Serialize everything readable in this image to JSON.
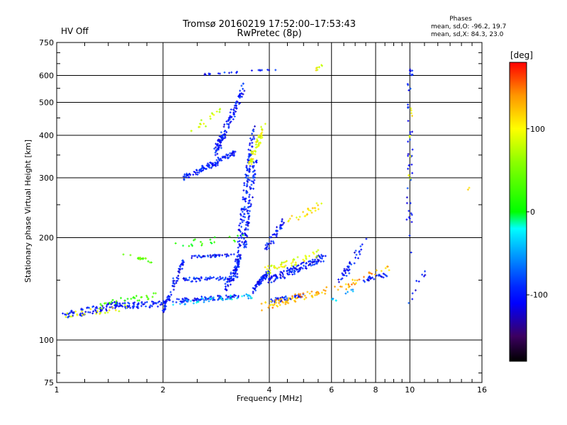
{
  "status_label": "HV Off",
  "status_color": "#e01010",
  "chart_data": {
    "type": "scatter",
    "title": "Tromsø 20160219 17:52:00–17:53:43",
    "subtitle": "RwPretec (8p)",
    "xlabel": "Frequency [MHz]",
    "ylabel": "Stationary phase Virtual Height [km]",
    "x_scale": "log",
    "y_scale": "log",
    "xlim": [
      1,
      16
    ],
    "ylim": [
      75,
      750
    ],
    "x_ticks": [
      1,
      2,
      4,
      6,
      8,
      10,
      16
    ],
    "x_tick_labels": [
      "1",
      "2",
      "4",
      "6",
      "8",
      "10",
      "16"
    ],
    "x_minor_ticks": [
      1.2,
      1.4,
      1.6,
      1.8,
      2.5,
      3,
      3.5,
      4.5,
      5,
      5.5,
      6.5,
      7,
      7.5,
      8.5,
      9,
      9.5,
      11,
      12,
      13,
      14,
      15
    ],
    "y_ticks": [
      75,
      100,
      200,
      300,
      400,
      500,
      600,
      750
    ],
    "y_tick_labels": [
      "75",
      "100",
      "200",
      "300",
      "400",
      "500",
      "600",
      "750"
    ],
    "grid": true,
    "legend": {
      "heading": "Phases",
      "lines": [
        "mean, sd,O: -96.2, 19.7",
        "mean, sd,X:  84.3, 23.0"
      ],
      "placement": "top-right"
    },
    "colorbar": {
      "label": "[deg]",
      "range": [
        -180,
        180
      ],
      "ticks": [
        100,
        0,
        -100
      ],
      "tick_labels": [
        "100",
        "0",
        "-100"
      ],
      "colors": [
        "#000000",
        "#3c0060",
        "#0000ff",
        "#00a0ff",
        "#00ffff",
        "#00ff00",
        "#ffff00",
        "#ffa000",
        "#ff0000"
      ]
    },
    "series": [
      {
        "segments": [
          {
            "x": [
              1.05,
              1.55
            ],
            "y": [
              118,
              128
            ],
            "n": 90,
            "spread": 0.05,
            "phase": -100
          },
          {
            "x": [
              1.55,
              2.05
            ],
            "y": [
              126,
              128
            ],
            "n": 70,
            "spread": 0.04,
            "phase": -100
          },
          {
            "x": [
              2.1,
              3.3
            ],
            "y": [
              130,
              135
            ],
            "n": 80,
            "spread": 0.03,
            "phase": -100
          },
          {
            "x": [
              2.1,
              3.2
            ],
            "y": [
              150,
              152
            ],
            "n": 60,
            "spread": 0.03,
            "phase": -100
          },
          {
            "x": [
              2.0,
              2.3
            ],
            "y": [
              120,
              175
            ],
            "n": 60,
            "spread": 0.03,
            "phase": -100
          },
          {
            "x": [
              2.3,
              3.2
            ],
            "y": [
              300,
              355
            ],
            "n": 110,
            "spread": 0.04,
            "phase": -100
          },
          {
            "x": [
              2.8,
              3.4
            ],
            "y": [
              350,
              560
            ],
            "n": 120,
            "spread": 0.05,
            "phase": -100
          },
          {
            "x": [
              3.2,
              3.6
            ],
            "y": [
              150,
              420
            ],
            "n": 140,
            "spread": 0.05,
            "phase": -100
          },
          {
            "x": [
              3.4,
              3.65
            ],
            "y": [
              185,
              340
            ],
            "n": 80,
            "spread": 0.04,
            "phase": -100
          },
          {
            "x": [
              3.0,
              3.3
            ],
            "y": [
              140,
              175
            ],
            "n": 50,
            "spread": 0.04,
            "phase": -100
          },
          {
            "x": [
              2.4,
              3.2
            ],
            "y": [
              175,
              178
            ],
            "n": 40,
            "spread": 0.02,
            "phase": -100
          },
          {
            "x": [
              3.6,
              4.0
            ],
            "y": [
              140,
              160
            ],
            "n": 60,
            "spread": 0.04,
            "phase": -100
          },
          {
            "x": [
              4.0,
              5.7
            ],
            "y": [
              150,
              175
            ],
            "n": 120,
            "spread": 0.05,
            "phase": -100
          },
          {
            "x": [
              3.9,
              4.4
            ],
            "y": [
              185,
              225
            ],
            "n": 40,
            "spread": 0.05,
            "phase": -100
          },
          {
            "x": [
              4.0,
              5.0
            ],
            "y": [
              130,
              135
            ],
            "n": 40,
            "spread": 0.03,
            "phase": -100
          },
          {
            "x": [
              6.2,
              7.5
            ],
            "y": [
              145,
              195
            ],
            "n": 40,
            "spread": 0.06,
            "phase": -100
          },
          {
            "x": [
              7.3,
              8.6
            ],
            "y": [
              150,
              155
            ],
            "n": 30,
            "spread": 0.03,
            "phase": -100
          },
          {
            "x": [
              9.95,
              10.05
            ],
            "y": [
              180,
              640
            ],
            "n": 45,
            "spread": 0.06,
            "phase": -100
          },
          {
            "x": [
              2.6,
              4.3
            ],
            "y": [
              605,
              625
            ],
            "n": 22,
            "spread": 0.01,
            "phase": -100
          },
          {
            "x": [
              1.3,
              1.9
            ],
            "y": [
              128,
              135
            ],
            "n": 30,
            "spread": 0.04,
            "phase": 30
          },
          {
            "x": [
              1.55,
              1.85
            ],
            "y": [
              180,
              170
            ],
            "n": 18,
            "spread": 0.02,
            "phase": 40
          },
          {
            "x": [
              1.05,
              1.6
            ],
            "y": [
              118,
              125
            ],
            "n": 25,
            "spread": 0.04,
            "phase": 90
          },
          {
            "x": [
              2.1,
              3.6
            ],
            "y": [
              128,
              135
            ],
            "n": 40,
            "spread": 0.03,
            "phase": -40
          },
          {
            "x": [
              2.1,
              3.4
            ],
            "y": [
              190,
              200
            ],
            "n": 20,
            "spread": 0.05,
            "phase": 20
          },
          {
            "x": [
              3.5,
              3.9
            ],
            "y": [
              330,
              430
            ],
            "n": 55,
            "spread": 0.05,
            "phase": 95
          },
          {
            "x": [
              2.4,
              2.9
            ],
            "y": [
              410,
              470
            ],
            "n": 18,
            "spread": 0.05,
            "phase": 80
          },
          {
            "x": [
              3.8,
              5.8
            ],
            "y": [
              125,
              140
            ],
            "n": 70,
            "spread": 0.05,
            "phase": 130
          },
          {
            "x": [
              3.9,
              5.6
            ],
            "y": [
              160,
              180
            ],
            "n": 50,
            "spread": 0.05,
            "phase": 90
          },
          {
            "x": [
              4.4,
              5.6
            ],
            "y": [
              220,
              250
            ],
            "n": 25,
            "spread": 0.05,
            "phase": 110
          },
          {
            "x": [
              5.3,
              5.7
            ],
            "y": [
              610,
              650
            ],
            "n": 8,
            "spread": 0.02,
            "phase": 100
          },
          {
            "x": [
              6.2,
              8.8
            ],
            "y": [
              140,
              165
            ],
            "n": 30,
            "spread": 0.05,
            "phase": 130
          },
          {
            "x": [
              9.9,
              10.1
            ],
            "y": [
              260,
              520
            ],
            "n": 10,
            "spread": 0.04,
            "phase": 100
          },
          {
            "x": [
              10.0,
              11.2
            ],
            "y": [
              130,
              165
            ],
            "n": 10,
            "spread": 0.05,
            "phase": -100
          },
          {
            "x": [
              6.0,
              7.0
            ],
            "y": [
              130,
              140
            ],
            "n": 10,
            "spread": 0.04,
            "phase": -40
          },
          {
            "x": [
              14.5,
              14.7
            ],
            "y": [
              275,
              280
            ],
            "n": 2,
            "spread": 0.01,
            "phase": 100
          }
        ]
      }
    ]
  }
}
